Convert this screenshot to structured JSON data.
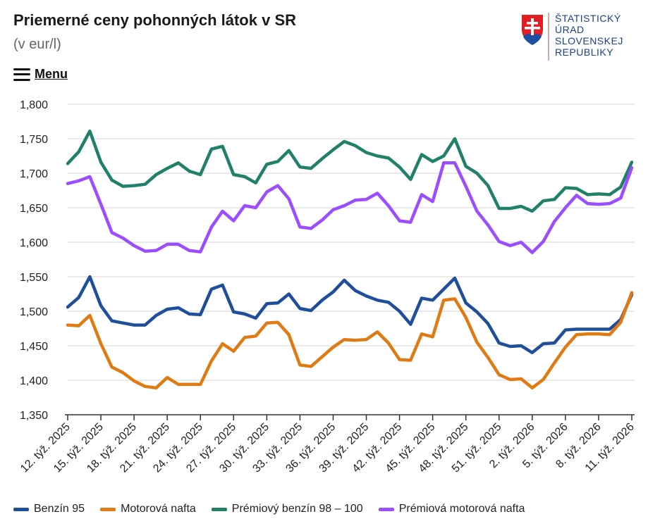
{
  "header": {
    "title": "Priemerné ceny pohonných látok v SR",
    "subtitle": "(v eur/l)",
    "menu_label": "Menu"
  },
  "logo": {
    "line1": "ŠTATISTICKÝ",
    "line2": "ÚRAD",
    "line3": "SLOVENSKEJ",
    "line4": "REPUBLIKY"
  },
  "chart_data": {
    "type": "line",
    "title": "Priemerné ceny pohonných látok v SR",
    "subtitle": "(v eur/l)",
    "ylim": [
      1.35,
      1.8
    ],
    "yticks": [
      "1,350",
      "1,400",
      "1,450",
      "1,500",
      "1,550",
      "1,600",
      "1,650",
      "1,700",
      "1,750",
      "1,800"
    ],
    "xtick_labels": [
      "12. týž. 2025",
      "15. týž. 2025",
      "18. týž. 2025",
      "21. týž. 2025",
      "24. týž. 2025",
      "27. týž. 2025",
      "30. týž. 2025",
      "33. týž. 2025",
      "36. týž. 2025",
      "39. týž. 2025",
      "42. týž. 2025",
      "45. týž. 2025",
      "48. týž. 2025",
      "51. týž. 2025",
      "2. týž. 2026",
      "5. týž. 2026",
      "8. týž. 2026",
      "11. týž. 2026"
    ],
    "grid": true,
    "legend_position": "bottom",
    "series": [
      {
        "name": "Benzín 95",
        "color": "#1f4e9a",
        "values": [
          1.506,
          1.52,
          1.55,
          1.508,
          1.486,
          1.483,
          1.48,
          1.48,
          1.494,
          1.503,
          1.505,
          1.496,
          1.495,
          1.532,
          1.538,
          1.499,
          1.496,
          1.49,
          1.511,
          1.512,
          1.525,
          1.504,
          1.501,
          1.516,
          1.528,
          1.545,
          1.53,
          1.522,
          1.516,
          1.513,
          1.5,
          1.481,
          1.519,
          1.516,
          1.532,
          1.548,
          1.512,
          1.499,
          1.482,
          1.454,
          1.449,
          1.45,
          1.44,
          1.453,
          1.454,
          1.473,
          1.474,
          1.474,
          1.474,
          1.474,
          1.488,
          1.524
        ]
      },
      {
        "name": "Motorová nafta",
        "color": "#e07b14",
        "values": [
          1.48,
          1.479,
          1.494,
          1.453,
          1.419,
          1.411,
          1.399,
          1.391,
          1.389,
          1.404,
          1.394,
          1.394,
          1.394,
          1.428,
          1.453,
          1.442,
          1.462,
          1.464,
          1.483,
          1.484,
          1.466,
          1.422,
          1.42,
          1.434,
          1.448,
          1.459,
          1.458,
          1.459,
          1.47,
          1.454,
          1.43,
          1.429,
          1.467,
          1.463,
          1.516,
          1.518,
          1.491,
          1.455,
          1.433,
          1.408,
          1.401,
          1.402,
          1.389,
          1.401,
          1.425,
          1.448,
          1.466,
          1.467,
          1.467,
          1.466,
          1.484,
          1.527
        ]
      },
      {
        "name": "Prémiový benzín 98 – 100",
        "color": "#21806a",
        "values": [
          1.714,
          1.731,
          1.761,
          1.716,
          1.69,
          1.681,
          1.682,
          1.684,
          1.698,
          1.707,
          1.715,
          1.703,
          1.698,
          1.735,
          1.739,
          1.698,
          1.695,
          1.686,
          1.713,
          1.717,
          1.733,
          1.709,
          1.707,
          1.721,
          1.734,
          1.746,
          1.74,
          1.73,
          1.725,
          1.722,
          1.709,
          1.691,
          1.727,
          1.717,
          1.725,
          1.75,
          1.71,
          1.7,
          1.682,
          1.649,
          1.649,
          1.652,
          1.645,
          1.66,
          1.662,
          1.679,
          1.678,
          1.669,
          1.67,
          1.669,
          1.68,
          1.716
        ]
      },
      {
        "name": "Prémiová motorová nafta",
        "color": "#9b4dff",
        "values": [
          1.685,
          1.689,
          1.695,
          1.655,
          1.614,
          1.606,
          1.595,
          1.587,
          1.588,
          1.597,
          1.597,
          1.588,
          1.586,
          1.622,
          1.645,
          1.631,
          1.653,
          1.65,
          1.673,
          1.682,
          1.663,
          1.622,
          1.62,
          1.632,
          1.647,
          1.653,
          1.661,
          1.662,
          1.671,
          1.653,
          1.631,
          1.629,
          1.669,
          1.659,
          1.715,
          1.715,
          1.681,
          1.645,
          1.625,
          1.601,
          1.595,
          1.6,
          1.585,
          1.601,
          1.63,
          1.65,
          1.668,
          1.656,
          1.655,
          1.656,
          1.664,
          1.708
        ]
      }
    ]
  }
}
